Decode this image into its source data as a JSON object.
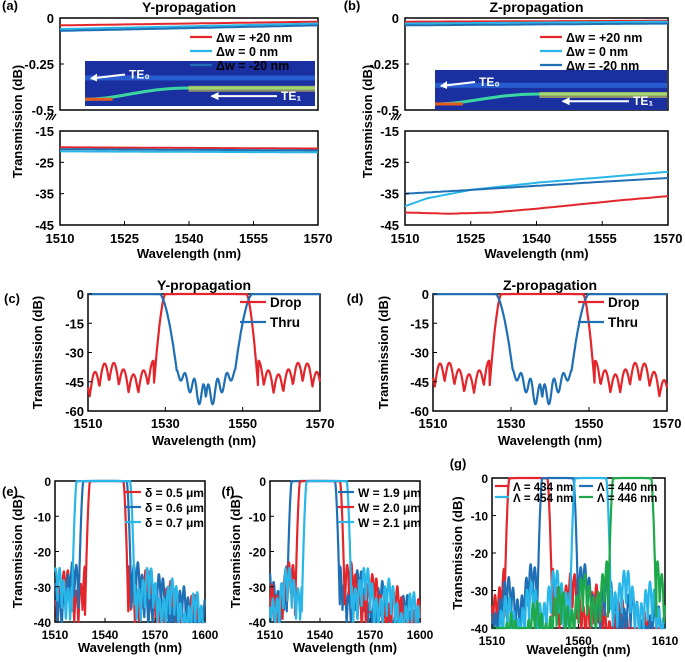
{
  "chart_data": [
    {
      "panel": "(a)",
      "type": "line",
      "title": "Y-propagation",
      "xlabel": "Wavelength (nm)",
      "ylabel": "Transmission (dB)",
      "xlim": [
        1510,
        1570
      ],
      "xticks": [
        "1510",
        "1525",
        "1540",
        "1555",
        "1570"
      ],
      "upper": {
        "ylim": [
          -0.5,
          0
        ],
        "yticks": [
          "0",
          "-0.25",
          "-0.5"
        ]
      },
      "lower": {
        "ylim": [
          -45,
          -15
        ],
        "yticks": [
          "-15",
          "-25",
          "-35",
          "-45"
        ]
      },
      "series": [
        {
          "name": "Δw = +20 nm",
          "color": "#e2262b",
          "upper": [
            [
              1510,
              -0.04
            ],
            [
              1570,
              -0.02
            ]
          ],
          "lower": [
            [
              1510,
              -20.2
            ],
            [
              1570,
              -20.6
            ]
          ]
        },
        {
          "name": "Δw = 0 nm",
          "color": "#29b6e8",
          "upper": [
            [
              1510,
              -0.06
            ],
            [
              1570,
              -0.03
            ]
          ],
          "lower": [
            [
              1510,
              -21.5
            ],
            [
              1570,
              -21.8
            ]
          ]
        },
        {
          "name": "Δw = -20 nm",
          "color": "#1f6fb4",
          "upper": [
            [
              1510,
              -0.07
            ],
            [
              1570,
              -0.04
            ]
          ],
          "lower": [
            [
              1510,
              -20.8
            ],
            [
              1570,
              -21.2
            ]
          ]
        }
      ],
      "inset_labels": [
        "TE₀",
        "TE₁"
      ]
    },
    {
      "panel": "(b)",
      "type": "line",
      "title": "Z-propagation",
      "xlabel": "Wavelength (nm)",
      "ylabel": "Transmission (dB)",
      "xlim": [
        1510,
        1570
      ],
      "xticks": [
        "1510",
        "1525",
        "1540",
        "1555",
        "1570"
      ],
      "upper": {
        "ylim": [
          -0.5,
          0
        ],
        "yticks": [
          "0",
          "-0.25",
          "-0.5"
        ]
      },
      "lower": {
        "ylim": [
          -45,
          -15
        ],
        "yticks": [
          "-15",
          "-25",
          "-35",
          "-45"
        ]
      },
      "series": [
        {
          "name": "Δw = +20 nm",
          "color": "#e2262b",
          "upper": [
            [
              1510,
              -0.02
            ],
            [
              1570,
              -0.015
            ]
          ],
          "lower": [
            [
              1510,
              -41
            ],
            [
              1520,
              -41.4
            ],
            [
              1530,
              -41
            ],
            [
              1540,
              -39.8
            ],
            [
              1550,
              -38.4
            ],
            [
              1560,
              -37
            ],
            [
              1570,
              -35.8
            ]
          ]
        },
        {
          "name": "Δw = 0 nm",
          "color": "#29b6e8",
          "upper": [
            [
              1510,
              -0.03
            ],
            [
              1570,
              -0.02
            ]
          ],
          "lower": [
            [
              1510,
              -39
            ],
            [
              1515,
              -36.5
            ],
            [
              1525,
              -33.8
            ],
            [
              1540,
              -31.5
            ],
            [
              1555,
              -29.8
            ],
            [
              1570,
              -28
            ]
          ]
        },
        {
          "name": "Δw = -20 nm",
          "color": "#1f6fb4",
          "upper": [
            [
              1510,
              -0.04
            ],
            [
              1570,
              -0.03
            ]
          ],
          "lower": [
            [
              1510,
              -35
            ],
            [
              1525,
              -33.8
            ],
            [
              1540,
              -32.5
            ],
            [
              1555,
              -31.2
            ],
            [
              1570,
              -30
            ]
          ]
        }
      ],
      "inset_labels": [
        "TE₀",
        "TE₁"
      ]
    },
    {
      "panel": "(c)",
      "type": "line",
      "title": "Y-propagation",
      "xlabel": "Wavelength (nm)",
      "ylabel": "Transmission (dB)",
      "xlim": [
        1510,
        1570
      ],
      "ylim": [
        -60,
        0
      ],
      "xticks": [
        "1510",
        "1530",
        "1550",
        "1570"
      ],
      "yticks": [
        "0",
        "-15",
        "-30",
        "-45",
        "-60"
      ],
      "series": [
        {
          "name": "Drop",
          "color": "#e2262b",
          "kind": "drop",
          "center": 1540.5,
          "halfwidth": 10.5
        },
        {
          "name": "Thru",
          "color": "#1f6fb4",
          "kind": "thru",
          "center": 1540.5,
          "halfwidth": 10.5
        }
      ]
    },
    {
      "panel": "(d)",
      "type": "line",
      "title": "Z-propagation",
      "xlabel": "Wavelength (nm)",
      "ylabel": "Transmission (dB)",
      "xlim": [
        1510,
        1570
      ],
      "ylim": [
        -60,
        0
      ],
      "xticks": [
        "1510",
        "1530",
        "1550",
        "1570"
      ],
      "yticks": [
        "0",
        "-15",
        "-30",
        "-45",
        "-60"
      ],
      "series": [
        {
          "name": "Drop",
          "color": "#e2262b",
          "kind": "drop",
          "center": 1538,
          "halfwidth": 10.5
        },
        {
          "name": "Thru",
          "color": "#1f6fb4",
          "kind": "thru",
          "center": 1538,
          "halfwidth": 10.5
        }
      ]
    },
    {
      "panel": "(e)",
      "type": "line",
      "title": "",
      "xlabel": "Wavelength (nm)",
      "ylabel": "Transmission (dB)",
      "xlim": [
        1510,
        1600
      ],
      "ylim": [
        -40,
        0
      ],
      "xticks": [
        "1510",
        "1540",
        "1570",
        "1600"
      ],
      "yticks": [
        "0",
        "-10",
        "-20",
        "-30",
        "-40"
      ],
      "series": [
        {
          "name": "δ = 0.5 μm",
          "color": "#e2262b",
          "kind": "drop",
          "center": 1541,
          "halfwidth": 10
        },
        {
          "name": "δ = 0.6 μm",
          "color": "#1f6fb4",
          "kind": "drop",
          "center": 1540,
          "halfwidth": 13
        },
        {
          "name": "δ = 0.7 μm",
          "color": "#29b6e8",
          "kind": "drop",
          "center": 1539,
          "halfwidth": 16
        }
      ]
    },
    {
      "panel": "(f)",
      "type": "line",
      "title": "",
      "xlabel": "Wavelength (nm)",
      "ylabel": "Transmission (dB)",
      "xlim": [
        1510,
        1600
      ],
      "ylim": [
        -40,
        0
      ],
      "xticks": [
        "1510",
        "1540",
        "1570",
        "1600"
      ],
      "yticks": [
        "0",
        "-10",
        "-20",
        "-30",
        "-40"
      ],
      "series": [
        {
          "name": "W = 1.9 μm",
          "color": "#1f6fb4",
          "kind": "drop",
          "center": 1536,
          "halfwidth": 13
        },
        {
          "name": "W = 2.0 μm",
          "color": "#e2262b",
          "kind": "drop",
          "center": 1540,
          "halfwidth": 12
        },
        {
          "name": "W = 2.1 μm",
          "color": "#29b6e8",
          "kind": "drop",
          "center": 1544,
          "halfwidth": 12
        }
      ]
    },
    {
      "panel": "(g)",
      "type": "line",
      "title": "",
      "xlabel": "Wavelength (nm)",
      "ylabel": "Transmission (dB)",
      "xlim": [
        1510,
        1610
      ],
      "ylim": [
        -40,
        0
      ],
      "xticks": [
        "1510",
        "1560",
        "1610"
      ],
      "yticks": [
        "0",
        "-10",
        "-20",
        "-30",
        "-40"
      ],
      "series": [
        {
          "name": "Λ = 434 nm",
          "color": "#e2262b",
          "kind": "drop",
          "center": 1531,
          "halfwidth": 11
        },
        {
          "name": "Λ = 440 nm",
          "color": "#1f6fb4",
          "kind": "drop",
          "center": 1548,
          "halfwidth": 9
        },
        {
          "name": "Λ = 454 nm",
          "color": "#29b6e8",
          "kind": "drop",
          "center": 1567,
          "halfwidth": 9
        },
        {
          "name": "Λ = 446 nm",
          "color": "#1fa84b",
          "kind": "drop",
          "center": 1591,
          "halfwidth": 11
        }
      ]
    }
  ]
}
